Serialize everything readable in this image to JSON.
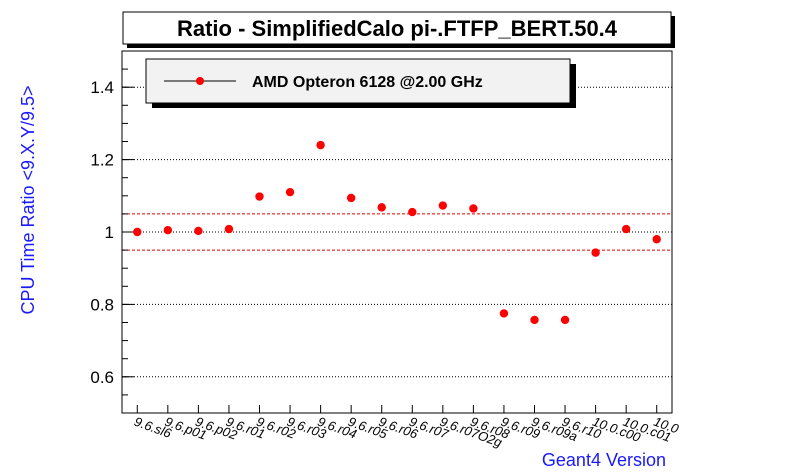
{
  "chart_data": {
    "type": "scatter",
    "title": "Ratio - SimplifiedCalo pi-.FTFP_BERT.50.4",
    "xlabel": "Geant4 Version",
    "ylabel": "CPU Time Ratio <9.X.Y/9.5>",
    "ylim": [
      0.5,
      1.5
    ],
    "yticks": [
      "0.6",
      "0.8",
      "1",
      "1.2",
      "1.4"
    ],
    "grid": true,
    "legend_position": "top-left",
    "reference_lines": [
      1.05,
      0.95
    ],
    "categories": [
      "9.6.sl6",
      "9.6.p01",
      "9.6.p02",
      "9.6.r01",
      "9.6.r02",
      "9.6.r03",
      "9.6.r04",
      "9.6.r05",
      "9.6.r06",
      "9.6.r07",
      "9.6.r07O2g",
      "9.6.r08",
      "9.6.r09",
      "9.6.r09a",
      "9.6.r10",
      "10.0.c00",
      "10.0.c01",
      "10.0"
    ],
    "series": [
      {
        "name": "AMD Opteron 6128 @2.00 GHz",
        "color": "#ff0000",
        "values": [
          1.0,
          1.005,
          1.003,
          1.008,
          1.098,
          1.11,
          1.24,
          1.094,
          1.068,
          1.055,
          1.073,
          1.065,
          0.775,
          0.757,
          0.757,
          0.943,
          1.008,
          0.98
        ]
      }
    ]
  }
}
